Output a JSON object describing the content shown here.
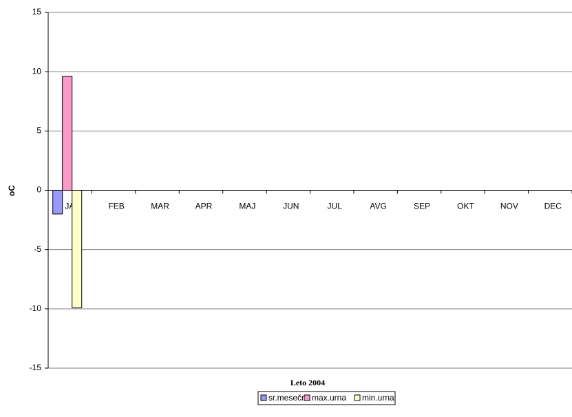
{
  "chart_data": {
    "type": "bar",
    "x_label": "Leto 2004",
    "y_label": "oC",
    "categories": [
      "JAN",
      "FEB",
      "MAR",
      "APR",
      "MAJ",
      "JUN",
      "JUL",
      "AVG",
      "SEP",
      "OKT",
      "NOV",
      "DEC"
    ],
    "series": [
      {
        "name": "sr.mesečna",
        "color": "#9999ff",
        "values": [
          -2.0,
          null,
          null,
          null,
          null,
          null,
          null,
          null,
          null,
          null,
          null,
          null
        ]
      },
      {
        "name": "max.urna",
        "color": "#ff99cc",
        "values": [
          9.6,
          null,
          null,
          null,
          null,
          null,
          null,
          null,
          null,
          null,
          null,
          null
        ]
      },
      {
        "name": "min.urna",
        "color": "#ffffcc",
        "values": [
          -9.9,
          null,
          null,
          null,
          null,
          null,
          null,
          null,
          null,
          null,
          null,
          null
        ]
      }
    ],
    "ylim": [
      -15,
      15
    ],
    "yticks": [
      -15,
      -10,
      -5,
      0,
      5,
      10,
      15
    ],
    "grid": true
  }
}
